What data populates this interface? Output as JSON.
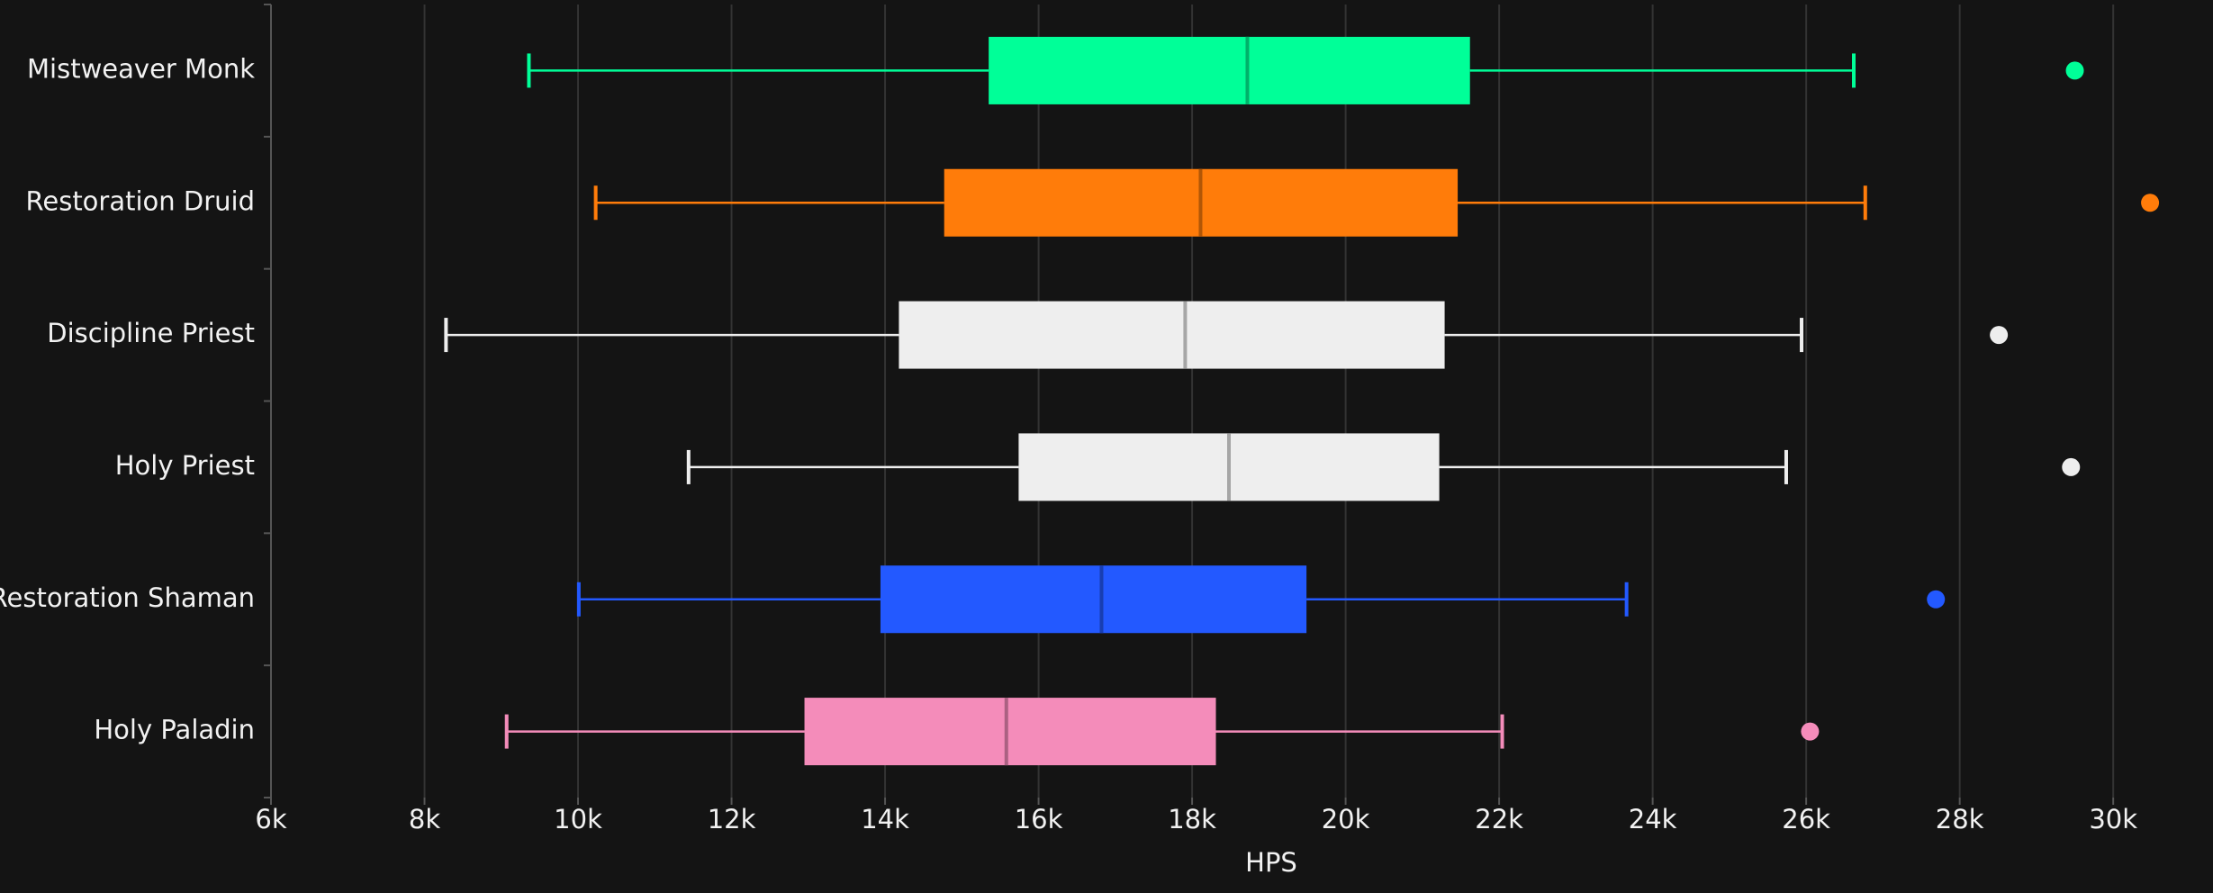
{
  "chart_data": {
    "type": "box",
    "x_label": "HPS",
    "xlim": [
      6000,
      31300
    ],
    "xticks": [
      {
        "value": 6000,
        "label": "6k"
      },
      {
        "value": 8000,
        "label": "8k"
      },
      {
        "value": 10000,
        "label": "10k"
      },
      {
        "value": 12000,
        "label": "12k"
      },
      {
        "value": 14000,
        "label": "14k"
      },
      {
        "value": 16000,
        "label": "16k"
      },
      {
        "value": 18000,
        "label": "18k"
      },
      {
        "value": 20000,
        "label": "20k"
      },
      {
        "value": 22000,
        "label": "22k"
      },
      {
        "value": 24000,
        "label": "24k"
      },
      {
        "value": 26000,
        "label": "26k"
      },
      {
        "value": 28000,
        "label": "28k"
      },
      {
        "value": 30000,
        "label": "30k"
      }
    ],
    "grid": true,
    "boxes": [
      {
        "name": "Mistweaver Monk",
        "color": "#00ff98",
        "whislo": 9360,
        "q1": 15350,
        "med": 18720,
        "q3": 21620,
        "whishi": 26620,
        "fliers": [
          29500
        ]
      },
      {
        "name": "Restoration Druid",
        "color": "#ff7c0a",
        "whislo": 10230,
        "q1": 14770,
        "med": 18110,
        "q3": 21460,
        "whishi": 26770,
        "fliers": [
          30480
        ]
      },
      {
        "name": "Discipline Priest",
        "color": "#eeeeee",
        "whislo": 8280,
        "q1": 14180,
        "med": 17910,
        "q3": 21290,
        "whishi": 25940,
        "fliers": [
          28510
        ]
      },
      {
        "name": "Holy Priest",
        "color": "#eeeeee",
        "whislo": 11440,
        "q1": 15740,
        "med": 18480,
        "q3": 21220,
        "whishi": 25740,
        "fliers": [
          29450
        ]
      },
      {
        "name": "Restoration Shaman",
        "color": "#2359ff",
        "whislo": 10010,
        "q1": 13940,
        "med": 16820,
        "q3": 19490,
        "whishi": 23660,
        "fliers": [
          27690
        ]
      },
      {
        "name": "Holy Paladin",
        "color": "#f48cba",
        "whislo": 9070,
        "q1": 12950,
        "med": 15580,
        "q3": 18310,
        "whishi": 22040,
        "fliers": [
          26050
        ]
      }
    ]
  }
}
